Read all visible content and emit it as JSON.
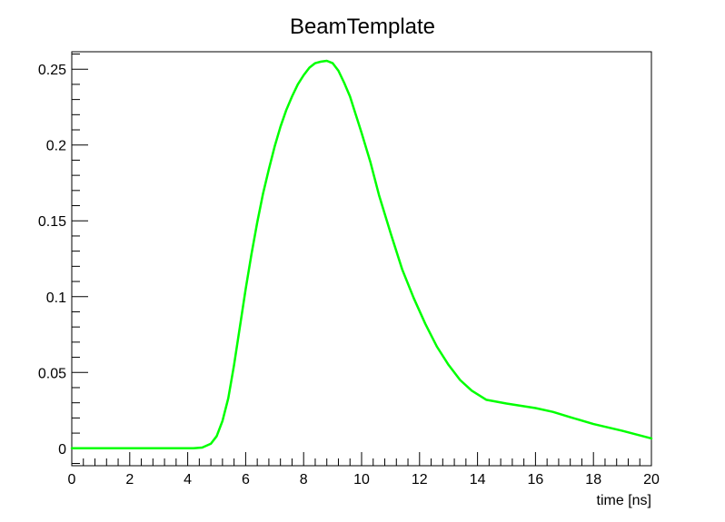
{
  "chart_data": {
    "type": "line",
    "title": "BeamTemplate",
    "xlabel": "time [ns]",
    "ylabel": "",
    "xlim": [
      0,
      20
    ],
    "ylim": [
      -0.0115,
      0.2615
    ],
    "grid": false,
    "legend": "none",
    "x_ticks": [
      0,
      2,
      4,
      6,
      8,
      10,
      12,
      14,
      16,
      18,
      20
    ],
    "x_tick_labels": [
      "0",
      "2",
      "4",
      "6",
      "8",
      "10",
      "12",
      "14",
      "16",
      "18",
      "20"
    ],
    "y_ticks": [
      0,
      0.05,
      0.1,
      0.15,
      0.2,
      0.25
    ],
    "y_tick_labels": [
      "0",
      "0.05",
      "0.1",
      "0.15",
      "0.2",
      "0.25"
    ],
    "series": [
      {
        "color": "#00ff00",
        "x": [
          0,
          4.2,
          4.5,
          4.8,
          5.0,
          5.2,
          5.4,
          5.6,
          5.8,
          6.0,
          6.2,
          6.4,
          6.6,
          6.8,
          7.0,
          7.2,
          7.4,
          7.6,
          7.8,
          8.0,
          8.2,
          8.4,
          8.6,
          8.8,
          9.0,
          9.2,
          9.4,
          9.6,
          9.8,
          10.0,
          10.3,
          10.6,
          11.0,
          11.4,
          11.8,
          12.2,
          12.6,
          13.0,
          13.4,
          13.8,
          14.3,
          15.0,
          16.0,
          16.6,
          17.2,
          18.0,
          19.0,
          20.0
        ],
        "y": [
          0,
          0,
          0.0005,
          0.003,
          0.008,
          0.018,
          0.033,
          0.055,
          0.08,
          0.105,
          0.128,
          0.149,
          0.168,
          0.184,
          0.199,
          0.212,
          0.223,
          0.232,
          0.24,
          0.246,
          0.251,
          0.254,
          0.255,
          0.2555,
          0.254,
          0.249,
          0.241,
          0.232,
          0.22,
          0.208,
          0.189,
          0.167,
          0.142,
          0.118,
          0.099,
          0.082,
          0.067,
          0.055,
          0.045,
          0.038,
          0.032,
          0.0295,
          0.0265,
          0.024,
          0.0205,
          0.016,
          0.0115,
          0.0065
        ]
      }
    ]
  }
}
